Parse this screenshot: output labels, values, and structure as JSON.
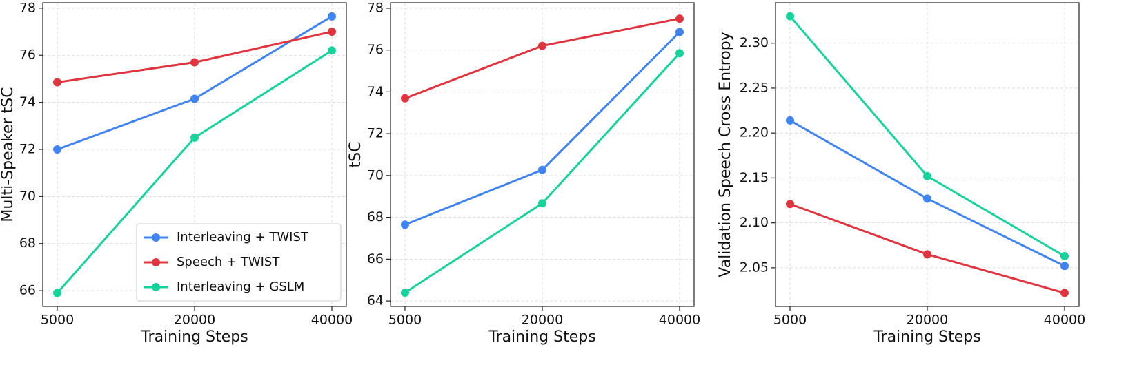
{
  "chart_data": [
    {
      "type": "line",
      "x_label": "Training Steps",
      "y_label": "Multi-Speaker tSC",
      "categories": [
        "5000",
        "20000",
        "40000"
      ],
      "ylim": [
        65.33,
        78.23
      ],
      "yticks": [
        66,
        68,
        70,
        72,
        74,
        76,
        78
      ],
      "grid": true,
      "legend": "lower right",
      "series": [
        {
          "name": "Interleaving + TWIST",
          "color": "#3f84f2",
          "values": [
            72.0,
            74.15,
            77.65
          ]
        },
        {
          "name": "Speech + TWIST",
          "color": "#e0343f",
          "values": [
            74.85,
            75.7,
            77.0
          ]
        },
        {
          "name": "Interleaving + GSLM",
          "color": "#16d39c",
          "values": [
            65.9,
            72.5,
            76.2
          ]
        }
      ]
    },
    {
      "type": "line",
      "x_label": "Training Steps",
      "y_label": "tSC",
      "categories": [
        "5000",
        "20000",
        "40000"
      ],
      "ylim": [
        63.74,
        78.26
      ],
      "yticks": [
        64,
        66,
        68,
        70,
        72,
        74,
        76,
        78
      ],
      "grid": true,
      "series": [
        {
          "color": "#3f84f2",
          "values": [
            67.65,
            70.27,
            76.86
          ]
        },
        {
          "color": "#e0343f",
          "values": [
            73.69,
            76.2,
            77.5
          ]
        },
        {
          "color": "#16d39c",
          "values": [
            64.4,
            68.67,
            75.85
          ]
        }
      ]
    },
    {
      "type": "line",
      "x_label": "Training Steps",
      "y_label": "Validation Speech Cross Entropy",
      "categories": [
        "5000",
        "20000",
        "40000"
      ],
      "ylim": [
        2.007,
        2.345
      ],
      "yticks": [
        {
          "value": 2.05,
          "label": "2.05"
        },
        {
          "value": 2.1,
          "label": "2.10"
        },
        {
          "value": 2.15,
          "label": "2.15"
        },
        {
          "value": 2.2,
          "label": "2.20"
        },
        {
          "value": 2.25,
          "label": "2.25"
        },
        {
          "value": 2.3,
          "label": "2.30"
        }
      ],
      "grid": true,
      "series": [
        {
          "color": "#3f84f2",
          "values": [
            2.214,
            2.127,
            2.052
          ]
        },
        {
          "color": "#e0343f",
          "values": [
            2.121,
            2.065,
            2.022
          ]
        },
        {
          "color": "#16d39c",
          "values": [
            2.33,
            2.152,
            2.063
          ]
        }
      ]
    }
  ]
}
